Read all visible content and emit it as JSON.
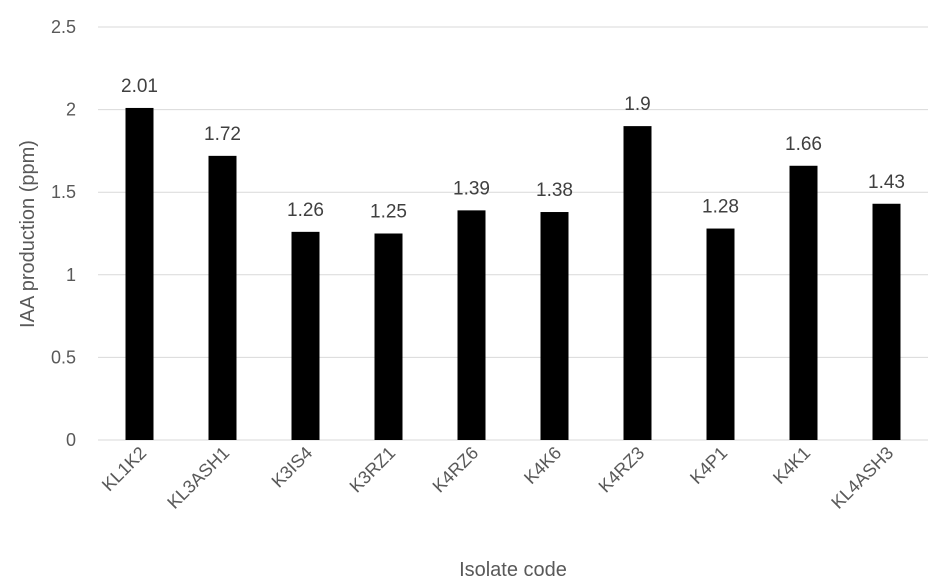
{
  "chart_data": {
    "type": "bar",
    "title": "",
    "xlabel": "Isolate code",
    "ylabel": "IAA production (ppm)",
    "categories": [
      "KL1K2",
      "KL3ASH1",
      "K3IS4",
      "K3RZ1",
      "K4RZ6",
      "K4K6",
      "K4RZ3",
      "K4P1",
      "K4K1",
      "KL4ASH3"
    ],
    "values": [
      2.01,
      1.72,
      1.26,
      1.25,
      1.39,
      1.38,
      1.9,
      1.28,
      1.66,
      1.43
    ],
    "data_labels": [
      "2.01",
      "1.72",
      "1.26",
      "1.25",
      "1.39",
      "1.38",
      "1.9",
      "1.28",
      "1.66",
      "1.43"
    ],
    "yticks": [
      "0",
      "0.5",
      "1",
      "1.5",
      "2",
      "2.5"
    ],
    "ylim": [
      0,
      2.5
    ],
    "grid": true,
    "legend": "none",
    "bar_color": "#000000"
  }
}
